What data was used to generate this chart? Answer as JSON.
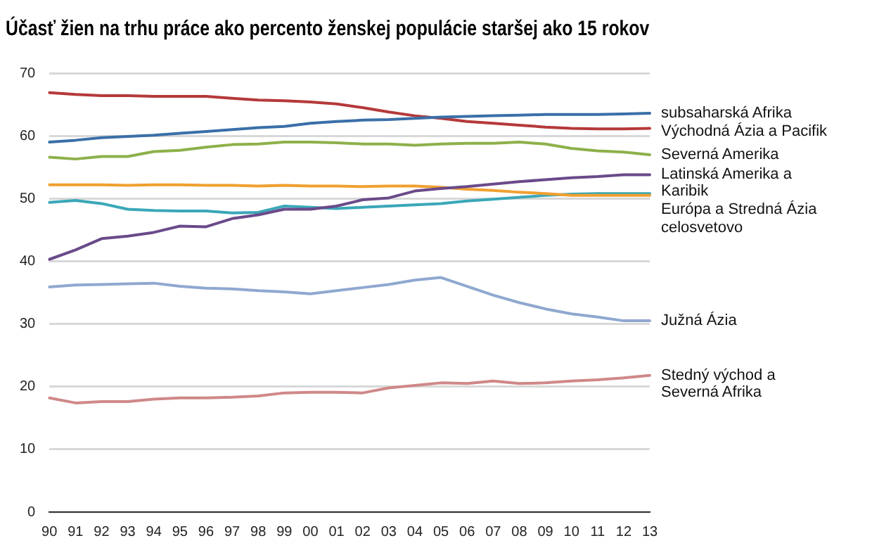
{
  "chart_data": {
    "type": "line",
    "title": "Účasť žien na trhu práce ako percento ženskej populácie staršej ako 15 rokov",
    "categories": [
      "90",
      "91",
      "92",
      "93",
      "94",
      "95",
      "96",
      "97",
      "98",
      "99",
      "00",
      "01",
      "02",
      "03",
      "04",
      "05",
      "06",
      "07",
      "08",
      "09",
      "10",
      "11",
      "12",
      "13"
    ],
    "ylim": [
      0,
      70
    ],
    "yticks": [
      0,
      10,
      20,
      30,
      40,
      50,
      60,
      70
    ],
    "grid": "y",
    "legend": false,
    "marker": "none",
    "line_style": "solid",
    "series": [
      {
        "name": "subsaharská Afrika",
        "color": "#3a6fa8",
        "values": [
          59.0,
          59.3,
          59.7,
          59.9,
          60.1,
          60.4,
          60.7,
          61.0,
          61.3,
          61.5,
          62.0,
          62.3,
          62.5,
          62.6,
          62.8,
          63.0,
          63.1,
          63.2,
          63.3,
          63.4,
          63.4,
          63.4,
          63.5,
          63.6
        ]
      },
      {
        "name": "Východná Ázia a Pacifik",
        "color": "#b5393a",
        "values": [
          66.9,
          66.6,
          66.4,
          66.4,
          66.3,
          66.3,
          66.3,
          66.0,
          65.7,
          65.6,
          65.4,
          65.1,
          64.5,
          63.8,
          63.2,
          62.8,
          62.3,
          62.0,
          61.7,
          61.4,
          61.2,
          61.1,
          61.1,
          61.2
        ]
      },
      {
        "name": "Severná Amerika",
        "color": "#8db04a",
        "values": [
          56.6,
          56.3,
          56.7,
          56.7,
          57.5,
          57.7,
          58.2,
          58.6,
          58.7,
          59.0,
          59.0,
          58.9,
          58.7,
          58.7,
          58.5,
          58.7,
          58.8,
          58.8,
          59.0,
          58.7,
          58.0,
          57.6,
          57.4,
          57.0
        ]
      },
      {
        "name": "Latinská Amerika a Karibik",
        "color": "#6a4a8a",
        "values": [
          40.3,
          41.8,
          43.6,
          44.0,
          44.6,
          45.6,
          45.5,
          46.8,
          47.4,
          48.3,
          48.3,
          48.8,
          49.8,
          50.1,
          51.2,
          51.6,
          51.9,
          52.3,
          52.7,
          53.0,
          53.3,
          53.5,
          53.8,
          53.8
        ]
      },
      {
        "name": "celosvetovo",
        "color": "#f0a030",
        "values": [
          52.2,
          52.2,
          52.2,
          52.1,
          52.2,
          52.2,
          52.1,
          52.1,
          52.0,
          52.1,
          52.0,
          52.0,
          51.9,
          52.0,
          52.0,
          51.8,
          51.5,
          51.3,
          51.0,
          50.8,
          50.5,
          50.5,
          50.5,
          50.5
        ]
      },
      {
        "name": "Európa a Stredná Ázia",
        "color": "#3aa7b8",
        "values": [
          49.4,
          49.7,
          49.2,
          48.3,
          48.1,
          48.0,
          48.0,
          47.7,
          47.8,
          48.8,
          48.6,
          48.4,
          48.6,
          48.8,
          49.0,
          49.2,
          49.6,
          49.9,
          50.2,
          50.5,
          50.7,
          50.8,
          50.8,
          50.8
        ]
      },
      {
        "name": "Južná Ázia",
        "color": "#8fa8d0",
        "values": [
          35.9,
          36.2,
          36.3,
          36.4,
          36.5,
          36.0,
          35.7,
          35.6,
          35.3,
          35.1,
          34.8,
          35.3,
          35.8,
          36.3,
          37.0,
          37.4,
          36.0,
          34.6,
          33.4,
          32.4,
          31.6,
          31.1,
          30.5,
          30.5
        ]
      },
      {
        "name": "Stedný východ a Severná Afrika",
        "color": "#d08888",
        "values": [
          18.2,
          17.4,
          17.6,
          17.6,
          18.0,
          18.2,
          18.2,
          18.3,
          18.5,
          19.0,
          19.1,
          19.1,
          19.0,
          19.8,
          20.2,
          20.6,
          20.5,
          20.9,
          20.5,
          20.6,
          20.9,
          21.1,
          21.4,
          21.8
        ]
      }
    ]
  }
}
